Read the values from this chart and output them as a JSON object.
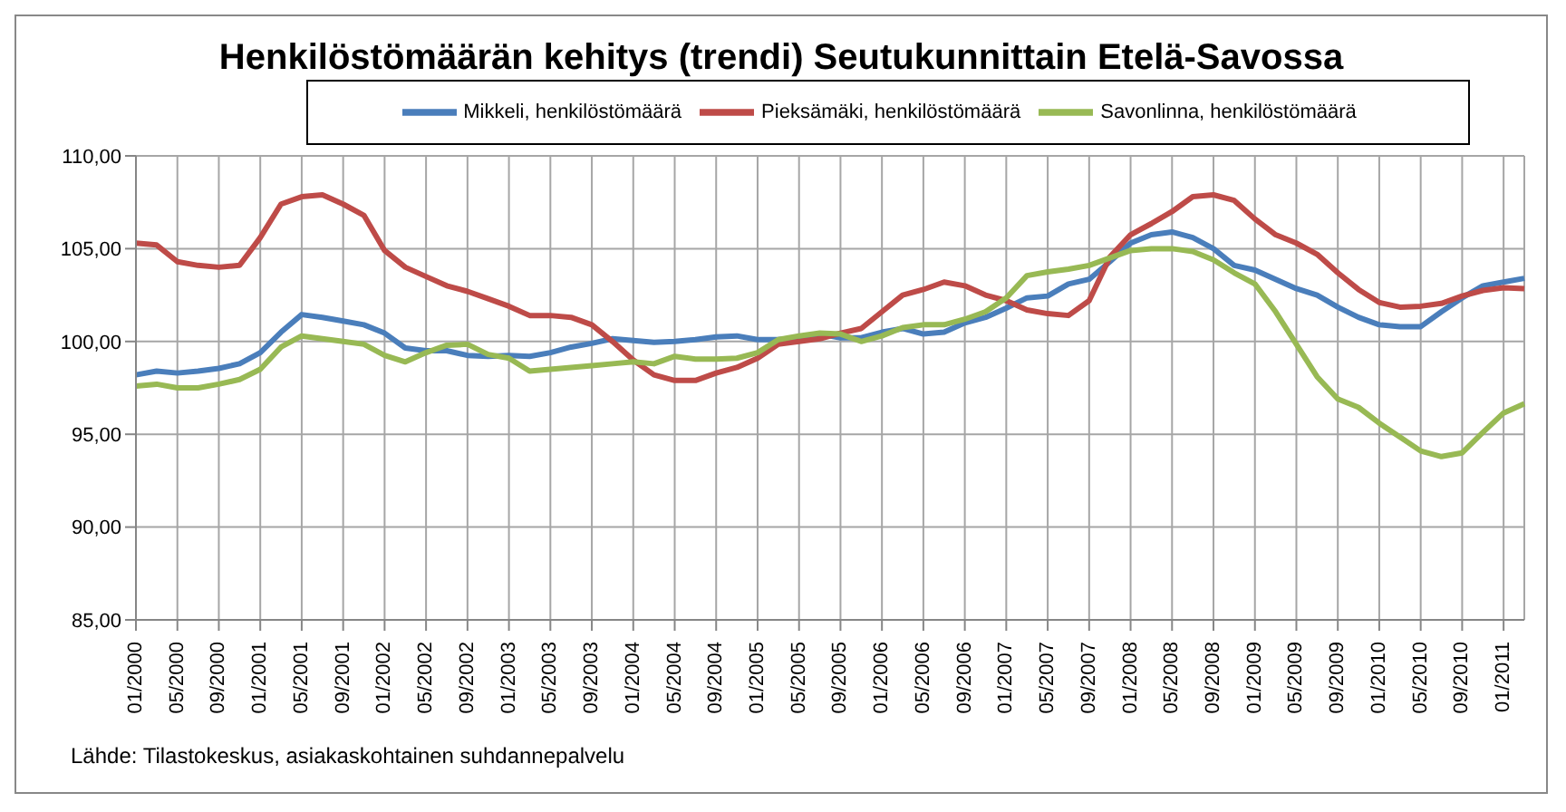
{
  "chart_data": {
    "type": "line",
    "title": "Henkilöstömäärän kehitys (trendi) Seutukunnittain Etelä-Savossa",
    "categories": [
      "01/2000",
      null,
      "05/2000",
      null,
      "09/2000",
      null,
      "01/2001",
      null,
      "05/2001",
      null,
      "09/2001",
      null,
      "01/2002",
      null,
      "05/2002",
      null,
      "09/2002",
      null,
      "01/2003",
      null,
      "05/2003",
      null,
      "09/2003",
      null,
      "01/2004",
      null,
      "05/2004",
      null,
      "09/2004",
      null,
      "01/2005",
      null,
      "05/2005",
      null,
      "09/2005",
      null,
      "01/2006",
      null,
      "05/2006",
      null,
      "09/2006",
      null,
      "01/2007",
      null,
      "05/2007",
      null,
      "09/2007",
      null,
      "01/2008",
      null,
      "05/2008",
      null,
      "09/2008",
      null,
      "01/2009",
      null,
      "05/2009",
      null,
      "09/2009",
      null,
      "01/2010",
      null,
      "05/2010",
      null,
      "09/2010",
      null,
      "01/2011",
      null
    ],
    "series": [
      {
        "name": "Mikkeli, henkilöstömäärä",
        "color": "#4a7ebb",
        "values": [
          98.2,
          98.4,
          98.3,
          98.4,
          98.55,
          98.8,
          99.4,
          100.5,
          101.45,
          101.3,
          101.1,
          100.9,
          100.45,
          99.65,
          99.5,
          99.5,
          99.25,
          99.2,
          99.25,
          99.2,
          99.4,
          99.7,
          99.9,
          100.15,
          100.05,
          99.95,
          100.0,
          100.1,
          100.25,
          100.3,
          100.1,
          100.1,
          100.2,
          100.4,
          100.2,
          100.2,
          100.5,
          100.7,
          100.4,
          100.5,
          101.0,
          101.3,
          101.8,
          102.35,
          102.45,
          103.1,
          103.35,
          104.3,
          105.3,
          105.75,
          105.9,
          105.6,
          105.0,
          104.1,
          103.85,
          103.35,
          102.85,
          102.5,
          101.85,
          101.3,
          100.9,
          100.8,
          100.8,
          101.6,
          102.35,
          103.0,
          103.2,
          103.4
        ]
      },
      {
        "name": "Pieksämäki, henkilöstömäärä",
        "color": "#be4b48",
        "values": [
          105.3,
          105.2,
          104.3,
          104.1,
          104.0,
          104.1,
          105.6,
          107.4,
          107.8,
          107.9,
          107.4,
          106.8,
          104.9,
          104.0,
          103.5,
          103.0,
          102.7,
          102.3,
          101.9,
          101.4,
          101.4,
          101.3,
          100.9,
          100.0,
          99.0,
          98.2,
          97.9,
          97.9,
          98.3,
          98.6,
          99.1,
          99.85,
          100.0,
          100.15,
          100.45,
          100.7,
          101.6,
          102.5,
          102.8,
          103.2,
          103.0,
          102.5,
          102.2,
          101.7,
          101.5,
          101.4,
          102.2,
          104.55,
          105.75,
          106.35,
          107.0,
          107.8,
          107.9,
          107.6,
          106.6,
          105.75,
          105.3,
          104.7,
          103.7,
          102.8,
          102.1,
          101.85,
          101.9,
          102.05,
          102.45,
          102.75,
          102.9,
          102.85
        ]
      },
      {
        "name": "Savonlinna, henkilöstömäärä",
        "color": "#98b954",
        "values": [
          97.6,
          97.7,
          97.5,
          97.5,
          97.7,
          97.95,
          98.5,
          99.7,
          100.3,
          100.15,
          100.0,
          99.85,
          99.25,
          98.9,
          99.4,
          99.8,
          99.85,
          99.3,
          99.1,
          98.4,
          98.5,
          98.6,
          98.7,
          98.8,
          98.9,
          98.8,
          99.2,
          99.05,
          99.05,
          99.1,
          99.4,
          100.1,
          100.3,
          100.45,
          100.4,
          100.0,
          100.3,
          100.75,
          100.9,
          100.9,
          101.2,
          101.6,
          102.35,
          103.55,
          103.75,
          103.9,
          104.1,
          104.5,
          104.9,
          105.0,
          105.0,
          104.85,
          104.4,
          103.7,
          103.1,
          101.6,
          99.85,
          98.1,
          96.9,
          96.45,
          95.6,
          94.85,
          94.1,
          93.8,
          94.0,
          95.1,
          96.15,
          96.65
        ]
      }
    ],
    "ylim": [
      85,
      110
    ],
    "yticks": [
      {
        "value": 85,
        "label": "85,00"
      },
      {
        "value": 90,
        "label": "90,00"
      },
      {
        "value": 95,
        "label": "95,00"
      },
      {
        "value": 100,
        "label": "100,00"
      },
      {
        "value": 105,
        "label": "105,00"
      },
      {
        "value": 110,
        "label": "110,00"
      }
    ],
    "grid": true,
    "legend": "top",
    "marker": "none",
    "line_style": "solid",
    "annotations": [
      "Lähde: Tilastokeskus, asiakaskohtainen suhdannepalvelu"
    ]
  }
}
